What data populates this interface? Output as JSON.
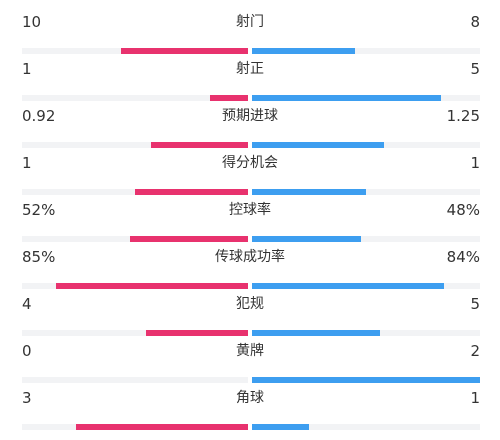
{
  "colors": {
    "home": "#e8326e",
    "away": "#3d9ef0",
    "track": "#f2f3f5"
  },
  "stats": [
    {
      "name": "射门",
      "home": "10",
      "away": "8",
      "home_fill": 0.56,
      "away_fill": 0.45
    },
    {
      "name": "射正",
      "home": "1",
      "away": "5",
      "home_fill": 0.17,
      "away_fill": 0.83
    },
    {
      "name": "预期进球",
      "home": "0.92",
      "away": "1.25",
      "home_fill": 0.43,
      "away_fill": 0.58
    },
    {
      "name": "得分机会",
      "home": "1",
      "away": "1",
      "home_fill": 0.5,
      "away_fill": 0.5
    },
    {
      "name": "控球率",
      "home": "52%",
      "away": "48%",
      "home_fill": 0.52,
      "away_fill": 0.48
    },
    {
      "name": "传球成功率",
      "home": "85%",
      "away": "84%",
      "home_fill": 0.85,
      "away_fill": 0.84
    },
    {
      "name": "犯规",
      "home": "4",
      "away": "5",
      "home_fill": 0.45,
      "away_fill": 0.56
    },
    {
      "name": "黄牌",
      "home": "0",
      "away": "2",
      "home_fill": 0.0,
      "away_fill": 1.0
    },
    {
      "name": "角球",
      "home": "3",
      "away": "1",
      "home_fill": 0.76,
      "away_fill": 0.25
    }
  ]
}
